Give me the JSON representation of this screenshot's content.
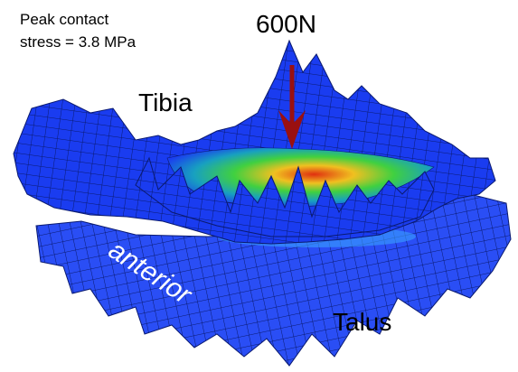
{
  "annotations": {
    "peak_stress": [
      "Peak contact",
      "stress = 3.8 MPa"
    ],
    "load": "600N",
    "tibia": "Tibia",
    "anterior": "anterior",
    "talus": "Talus"
  }
}
